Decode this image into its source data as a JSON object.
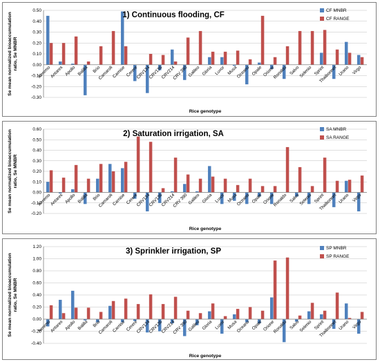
{
  "chart_data": [
    {
      "type": "bar",
      "title": "1) Continuous flooding, CF",
      "xlabel": "Rice genotype",
      "ylabel": "Se mean normalized bioaccumulation ratio, Se MNBR",
      "ylim": [
        -0.3,
        0.5
      ],
      "yticks": [
        -0.3,
        -0.2,
        -0.1,
        0.0,
        0.1,
        0.2,
        0.3,
        0.4,
        0.5
      ],
      "legend_position": "top-right",
      "categories": [
        "Aeremo",
        "Antares",
        "Apollo",
        "Balilla",
        "Brio",
        "Camaroli",
        "Carnise",
        "Cerere",
        "CRV134",
        "CRV136",
        "CRV214",
        "CRV 390",
        "Galileo",
        "Gloria",
        "Luxor",
        "Musa",
        "Oceano",
        "Opale",
        "Orione",
        "Ronaldo",
        "Salvo",
        "Selenio",
        "Sprint",
        "Thaibonnet",
        "Urano",
        "Virgo"
      ],
      "series": [
        {
          "name": "CF MNBR",
          "color": "#4F81BD",
          "values": [
            0.45,
            0.03,
            0.01,
            -0.28,
            0.0,
            0.0,
            0.49,
            -0.15,
            -0.26,
            -0.05,
            0.14,
            -0.14,
            0.0,
            0.07,
            0.07,
            -0.01,
            -0.18,
            0.02,
            -0.04,
            -0.13,
            0.0,
            0.0,
            0.11,
            -0.13,
            0.21,
            0.09
          ]
        },
        {
          "name": "CF RANGE",
          "color": "#C0504D",
          "values": [
            0.2,
            0.2,
            0.26,
            0.03,
            0.17,
            0.31,
            0.17,
            0.0,
            0.1,
            0.09,
            0.03,
            0.25,
            0.31,
            0.12,
            0.12,
            0.13,
            0.05,
            0.45,
            0.07,
            0.17,
            0.31,
            0.31,
            0.32,
            0.14,
            0.11,
            0.07
          ]
        }
      ]
    },
    {
      "type": "bar",
      "title": "2) Saturation irrigation, SA",
      "xlabel": "Rice genotype",
      "ylabel": "Se mean normalized bioaccumulation ratio, Se MNBR",
      "ylim": [
        -0.2,
        0.6
      ],
      "yticks": [
        -0.2,
        -0.1,
        0.0,
        0.1,
        0.2,
        0.3,
        0.4,
        0.5,
        0.6
      ],
      "legend_position": "top-right",
      "categories": [
        "Aeremo",
        "Antares",
        "Apollo",
        "Balilla",
        "Brio",
        "Camaroli",
        "Carnise",
        "Cerere",
        "CRV134",
        "CRV136",
        "CRV214",
        "CRV 390",
        "Galileo",
        "Gloria",
        "Luxor",
        "Musa",
        "Oceano",
        "Opale",
        "Orione",
        "Ronaldo",
        "Salvo",
        "Selenio",
        "Sprint",
        "Thaibonnet",
        "Urano",
        "Virgo"
      ],
      "series": [
        {
          "name": "SA MNBR",
          "color": "#4F81BD",
          "values": [
            0.1,
            -0.01,
            0.03,
            -0.11,
            0.13,
            0.27,
            0.23,
            -0.06,
            -0.18,
            -0.1,
            0.01,
            0.08,
            0.01,
            0.25,
            -0.11,
            -0.08,
            -0.11,
            -0.04,
            -0.11,
            0.0,
            -0.04,
            -0.11,
            0.0,
            -0.14,
            0.11,
            -0.18
          ]
        },
        {
          "name": "SA RANGE",
          "color": "#C0504D",
          "values": [
            0.21,
            0.14,
            0.26,
            0.13,
            0.27,
            0.2,
            0.29,
            0.53,
            0.48,
            0.04,
            0.33,
            0.17,
            0.13,
            0.15,
            0.13,
            0.07,
            0.13,
            0.06,
            0.06,
            0.43,
            0.24,
            0.06,
            0.33,
            0.11,
            0.12,
            0.16
          ]
        }
      ]
    },
    {
      "type": "bar",
      "title": "3) Sprinkler irrigation, SP",
      "xlabel": "Rice genotype",
      "ylabel": "Se mean normalized bioaccumulation ratio, Se MNBR",
      "ylim": [
        -0.4,
        1.2
      ],
      "yticks": [
        -0.4,
        -0.2,
        0.0,
        0.2,
        0.4,
        0.6,
        0.8,
        1.0,
        1.2
      ],
      "legend_position": "top-right",
      "categories": [
        "Aeremo",
        "Antares",
        "Apollo",
        "Balilla",
        "Brio",
        "Camaroli",
        "Carnise",
        "Cerere",
        "CRV134",
        "CRV136",
        "CRV214",
        "CRV 390",
        "Galileo",
        "Gloria",
        "Luxor",
        "Musa",
        "Oceano",
        "Opale",
        "Orione",
        "Ronaldo",
        "Salvo",
        "Selenio",
        "Sprint",
        "Thaibonnet",
        "Urano",
        "Virgo"
      ],
      "series": [
        {
          "name": "SP MNBR",
          "color": "#4F81BD",
          "values": [
            -0.12,
            0.32,
            0.47,
            -0.02,
            -0.05,
            0.22,
            -0.05,
            -0.03,
            -0.22,
            -0.2,
            -0.07,
            -0.28,
            -0.1,
            0.13,
            -0.24,
            0.08,
            -0.05,
            -0.07,
            0.36,
            -0.38,
            -0.04,
            0.13,
            0.08,
            -0.16,
            0.26,
            -0.24
          ]
        },
        {
          "name": "SP RANGE",
          "color": "#C0504D",
          "values": [
            0.23,
            0.1,
            0.19,
            0.19,
            0.12,
            0.3,
            0.34,
            0.25,
            0.41,
            0.25,
            0.37,
            0.14,
            0.1,
            0.26,
            0.05,
            0.17,
            0.2,
            0.14,
            0.97,
            1.02,
            0.06,
            0.27,
            0.14,
            0.44,
            0.02,
            0.12
          ]
        }
      ]
    }
  ]
}
